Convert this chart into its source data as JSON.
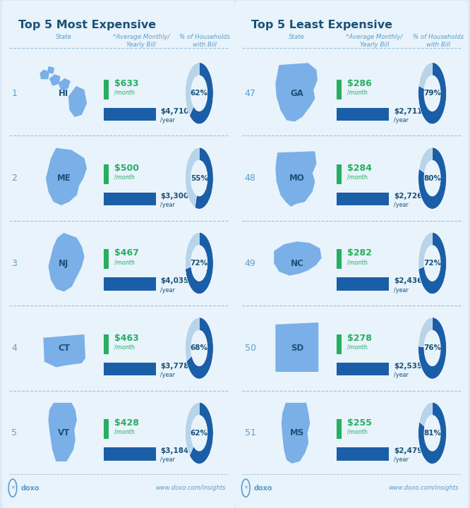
{
  "left_title": "Top 5 Most Expensive",
  "right_title": "Top 5 Least Expensive",
  "left_states": [
    {
      "rank": "1",
      "abbr": "HI",
      "monthly": "$633",
      "yearly": "$4,710",
      "pct": 62
    },
    {
      "rank": "2",
      "abbr": "ME",
      "monthly": "$500",
      "yearly": "$3,300",
      "pct": 55
    },
    {
      "rank": "3",
      "abbr": "NJ",
      "monthly": "$467",
      "yearly": "$4,035",
      "pct": 72
    },
    {
      "rank": "4",
      "abbr": "CT",
      "monthly": "$463",
      "yearly": "$3,778",
      "pct": 68
    },
    {
      "rank": "5",
      "abbr": "VT",
      "monthly": "$428",
      "yearly": "$3,184",
      "pct": 62
    }
  ],
  "right_states": [
    {
      "rank": "47",
      "abbr": "GA",
      "monthly": "$286",
      "yearly": "$2,711",
      "pct": 79
    },
    {
      "rank": "48",
      "abbr": "MO",
      "monthly": "$284",
      "yearly": "$2,726",
      "pct": 80
    },
    {
      "rank": "49",
      "abbr": "NC",
      "monthly": "$282",
      "yearly": "$2,436",
      "pct": 72
    },
    {
      "rank": "50",
      "abbr": "SD",
      "monthly": "$278",
      "yearly": "$2,535",
      "pct": 76
    },
    {
      "rank": "51",
      "abbr": "MS",
      "monthly": "$255",
      "yearly": "$2,479",
      "pct": 81
    }
  ],
  "bg_color": "#dce9f5",
  "panel_bg": "#e8f3fb",
  "title_color": "#1a5276",
  "header_color": "#5d9cca",
  "rank_color": "#5d9cca",
  "state_abbr_color": "#1a5276",
  "state_fill": "#7aafe8",
  "monthly_color": "#27ae60",
  "yearly_color": "#1a5276",
  "bar_color": "#1a5ea8",
  "donut_fill": "#1a5ea8",
  "donut_bg": "#b8d4ea",
  "pct_text_color": "#1a5276",
  "green_sq_color": "#27ae60",
  "footer_text": "www.doxo.com/insights",
  "divider_color": "#99bcd8"
}
